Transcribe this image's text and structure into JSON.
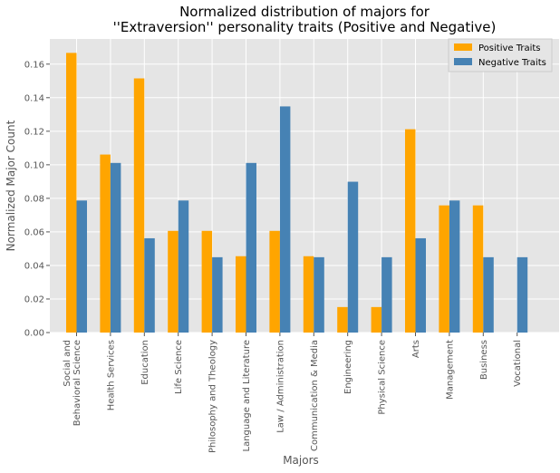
{
  "chart_data": {
    "type": "bar",
    "title_line1": "Normalized distribution of majors for",
    "title_line2": "''Extraversion'' personality traits (Positive and Negative)",
    "xlabel": "Majors",
    "ylabel": "Normalized Major Count",
    "ylim": [
      0,
      0.175
    ],
    "yticks": [
      "0.00",
      "0.02",
      "0.04",
      "0.06",
      "0.08",
      "0.10",
      "0.12",
      "0.14",
      "0.16"
    ],
    "categories": [
      "Social and\nBehavioral Science",
      "Health Services",
      "Education",
      "Life Science",
      "Philosophy and Theology",
      "Language and Literature",
      "Law / Administration",
      "Communication & Media",
      "Engineering",
      "Physical Science",
      "Arts",
      "Management",
      "Business",
      "Vocational"
    ],
    "series": [
      {
        "name": "Positive Traits",
        "color": "#ffa500",
        "values": [
          0.1667,
          0.1061,
          0.1515,
          0.0606,
          0.0606,
          0.0455,
          0.0606,
          0.0455,
          0.0152,
          0.0152,
          0.1212,
          0.0758,
          0.0758,
          0.0
        ]
      },
      {
        "name": "Negative Traits",
        "color": "#4682b4",
        "values": [
          0.0787,
          0.1011,
          0.0562,
          0.0787,
          0.0449,
          0.1011,
          0.1348,
          0.0449,
          0.0899,
          0.0449,
          0.0562,
          0.0787,
          0.0449,
          0.0449
        ]
      }
    ],
    "grid": true,
    "background": "#e5e5e5",
    "legend_position": "top-right"
  }
}
